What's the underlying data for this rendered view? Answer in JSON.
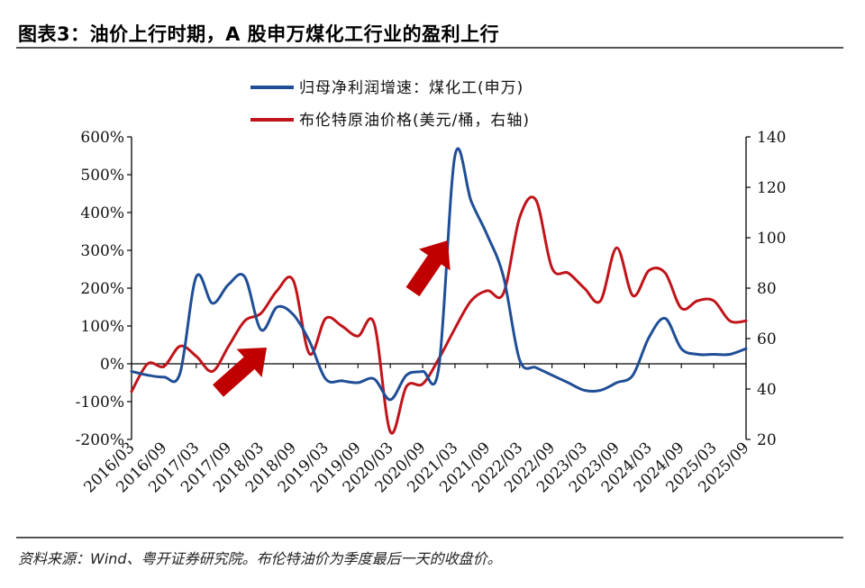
{
  "header": {
    "title": "图表3：油价上行时期，A 股申万煤化工行业的盈利上行"
  },
  "footer": {
    "source": "资料来源：Wind、粤开证券研究院。布伦特油价为季度最后一天的收盘价。"
  },
  "colors": {
    "blue": "#1f4e96",
    "red": "#c0141a",
    "arrow": "#c00000"
  },
  "chart_data": {
    "type": "line",
    "left_axis": {
      "min": -200,
      "max": 600,
      "step": 100,
      "ticks": [
        "-200%",
        "-100%",
        "0%",
        "100%",
        "200%",
        "300%",
        "400%",
        "500%",
        "600%"
      ]
    },
    "right_axis": {
      "min": 20,
      "max": 140,
      "step": 20,
      "ticks": [
        "20",
        "40",
        "60",
        "80",
        "100",
        "120",
        "140"
      ]
    },
    "x": [
      "2016/03",
      "2016/06",
      "2016/09",
      "2016/12",
      "2017/03",
      "2017/06",
      "2017/09",
      "2017/12",
      "2018/03",
      "2018/06",
      "2018/09",
      "2018/12",
      "2019/03",
      "2019/06",
      "2019/09",
      "2019/12",
      "2020/03",
      "2020/06",
      "2020/09",
      "2020/12",
      "2021/03",
      "2021/06",
      "2021/09",
      "2021/12",
      "2022/03",
      "2022/06",
      "2022/09",
      "2022/12",
      "2023/03",
      "2023/06",
      "2023/09",
      "2023/12",
      "2024/03",
      "2024/06",
      "2024/09",
      "2024/12",
      "2025/03",
      "2025/06",
      "2025/09"
    ],
    "x_tick_labels": [
      "2016/03",
      "2016/09",
      "2017/03",
      "2017/09",
      "2018/03",
      "2018/09",
      "2019/03",
      "2019/09",
      "2020/03",
      "2020/09",
      "2021/03",
      "2021/09",
      "2022/03",
      "2022/09",
      "2023/03",
      "2023/09",
      "2024/03",
      "2024/09",
      "2025/03",
      "2025/09"
    ],
    "series": [
      {
        "name": "归母净利润增速：煤化工(申万)",
        "axis": "left",
        "color": "#1f4e96",
        "values": [
          -20,
          -30,
          -35,
          -25,
          230,
          160,
          210,
          230,
          90,
          150,
          130,
          60,
          -40,
          -45,
          -50,
          -40,
          -95,
          -30,
          -20,
          -10,
          550,
          430,
          340,
          230,
          10,
          -10,
          -30,
          -50,
          -70,
          -70,
          -50,
          -30,
          70,
          120,
          40,
          25,
          25,
          25,
          40
        ]
      },
      {
        "name": "布伦特原油价格(美元/桶，右轴)",
        "axis": "right",
        "color": "#c0141a",
        "values": [
          39,
          50,
          49,
          57,
          53,
          47,
          57,
          67,
          70,
          79,
          83,
          54,
          68,
          65,
          61,
          66,
          23,
          41,
          42,
          52,
          64,
          75,
          79,
          78,
          108,
          115,
          88,
          86,
          80,
          75,
          96,
          77,
          87,
          86,
          72,
          75,
          75,
          67,
          67
        ]
      }
    ],
    "annotations": [
      "up-arrow-2018",
      "up-arrow-2021"
    ]
  }
}
